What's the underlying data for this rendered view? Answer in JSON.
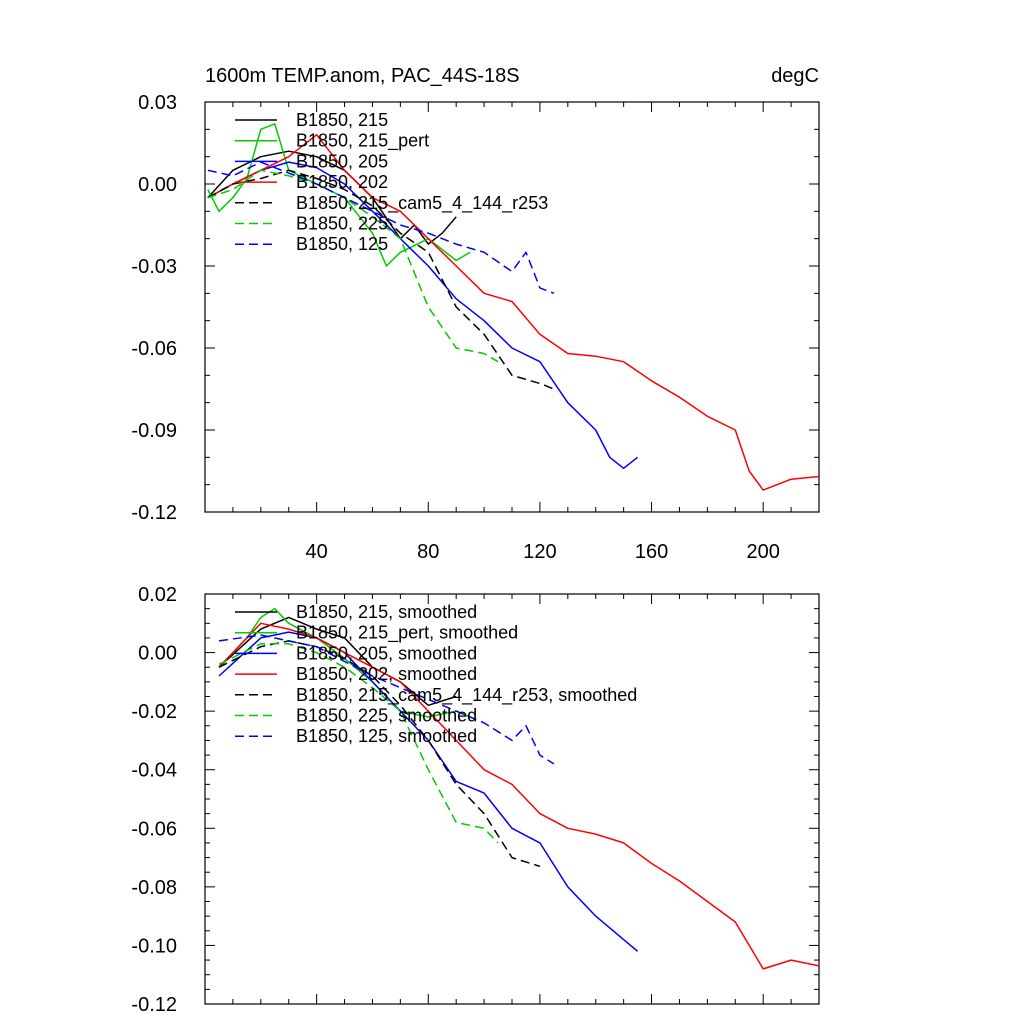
{
  "chart_data": [
    {
      "type": "line",
      "title_left": "1600m TEMP.anom, PAC_44S-18S",
      "title_right": "degC",
      "xlabel": "",
      "ylabel": "",
      "xlim": [
        0,
        220
      ],
      "ylim": [
        -0.12,
        0.03
      ],
      "xticks": [
        "40",
        "80",
        "120",
        "160",
        "200"
      ],
      "yticks": [
        "0.03",
        "0.00",
        "-0.03",
        "-0.06",
        "-0.09",
        "-0.12"
      ],
      "legend_position": "top-left",
      "series": [
        {
          "name": "B1850, 215",
          "color": "#000000",
          "dash": "solid",
          "x": [
            1,
            10,
            20,
            30,
            40,
            50,
            60,
            70,
            75,
            80,
            85,
            90
          ],
          "y": [
            -0.005,
            0.005,
            0.01,
            0.012,
            0.01,
            0.005,
            -0.005,
            -0.02,
            -0.015,
            -0.022,
            -0.018,
            -0.012
          ]
        },
        {
          "name": "B1850, 215_pert",
          "color": "#00cc00",
          "dash": "solid",
          "x": [
            1,
            5,
            10,
            15,
            20,
            25,
            30,
            40,
            50,
            60,
            65,
            70,
            80,
            90,
            95
          ],
          "y": [
            -0.002,
            -0.01,
            -0.005,
            0.002,
            0.02,
            0.022,
            0.005,
            0.0,
            -0.005,
            -0.018,
            -0.03,
            -0.025,
            -0.02,
            -0.028,
            -0.025
          ]
        },
        {
          "name": "B1850, 205",
          "color": "#0000ff",
          "dash": "solid",
          "x": [
            1,
            10,
            20,
            30,
            40,
            50,
            60,
            70,
            80,
            90,
            100,
            110,
            120,
            130,
            140,
            145,
            150,
            155
          ],
          "y": [
            -0.005,
            0.0,
            0.005,
            0.008,
            0.006,
            0.0,
            -0.01,
            -0.02,
            -0.03,
            -0.042,
            -0.05,
            -0.06,
            -0.065,
            -0.08,
            -0.09,
            -0.1,
            -0.104,
            -0.1
          ]
        },
        {
          "name": "B1850, 202",
          "color": "#ff0000",
          "dash": "solid",
          "x": [
            1,
            10,
            20,
            30,
            40,
            50,
            60,
            70,
            80,
            90,
            100,
            110,
            120,
            130,
            140,
            150,
            160,
            170,
            180,
            190,
            195,
            200,
            210,
            220
          ],
          "y": [
            -0.005,
            0.0,
            0.005,
            0.01,
            0.018,
            0.005,
            -0.005,
            -0.01,
            -0.02,
            -0.03,
            -0.04,
            -0.043,
            -0.055,
            -0.062,
            -0.063,
            -0.065,
            -0.072,
            -0.078,
            -0.085,
            -0.09,
            -0.105,
            -0.112,
            -0.108,
            -0.107
          ]
        },
        {
          "name": "B1850, 215_cam5_4_144_r253",
          "color": "#000000",
          "dash": "dashed",
          "x": [
            1,
            10,
            20,
            30,
            40,
            50,
            60,
            70,
            80,
            90,
            100,
            110,
            120,
            125
          ],
          "y": [
            -0.005,
            0.0,
            0.002,
            0.005,
            0.002,
            -0.002,
            -0.008,
            -0.018,
            -0.025,
            -0.045,
            -0.055,
            -0.07,
            -0.073,
            -0.075
          ]
        },
        {
          "name": "B1850, 225",
          "color": "#00cc00",
          "dash": "dashed",
          "x": [
            1,
            10,
            20,
            30,
            40,
            50,
            60,
            70,
            80,
            90,
            100,
            105
          ],
          "y": [
            -0.005,
            -0.002,
            0.005,
            0.003,
            0.0,
            -0.005,
            -0.012,
            -0.02,
            -0.045,
            -0.06,
            -0.062,
            -0.065
          ]
        },
        {
          "name": "B1850, 125",
          "color": "#0000ff",
          "dash": "dashed",
          "x": [
            1,
            10,
            20,
            30,
            40,
            50,
            60,
            70,
            80,
            90,
            100,
            110,
            115,
            120,
            125
          ],
          "y": [
            0.005,
            0.003,
            0.008,
            0.004,
            0.0,
            -0.005,
            -0.01,
            -0.015,
            -0.018,
            -0.022,
            -0.025,
            -0.032,
            -0.025,
            -0.038,
            -0.04
          ]
        }
      ]
    },
    {
      "type": "line",
      "title_left": "",
      "title_right": "",
      "xlabel": "",
      "ylabel": "",
      "xlim": [
        0,
        220
      ],
      "ylim": [
        -0.12,
        0.02
      ],
      "xticks": [],
      "yticks": [
        "0.02",
        "0.00",
        "-0.02",
        "-0.04",
        "-0.06",
        "-0.08",
        "-0.10",
        "-0.12"
      ],
      "legend_position": "top-left",
      "series": [
        {
          "name": "B1850, 215, smoothed",
          "color": "#000000",
          "dash": "solid",
          "x": [
            5,
            20,
            30,
            40,
            50,
            60,
            70,
            80,
            90
          ],
          "y": [
            -0.005,
            0.008,
            0.012,
            0.008,
            0.005,
            -0.005,
            -0.01,
            -0.018,
            -0.015
          ]
        },
        {
          "name": "B1850, 215_pert, smoothed",
          "color": "#00cc00",
          "dash": "solid",
          "x": [
            5,
            15,
            20,
            25,
            30,
            40,
            50,
            60,
            70,
            80,
            90,
            95
          ],
          "y": [
            -0.005,
            0.005,
            0.012,
            0.015,
            0.01,
            0.005,
            -0.002,
            -0.01,
            -0.02,
            -0.022,
            -0.02,
            -0.022
          ]
        },
        {
          "name": "B1850, 205, smoothed",
          "color": "#0000ff",
          "dash": "solid",
          "x": [
            5,
            20,
            30,
            40,
            50,
            60,
            70,
            80,
            90,
            100,
            110,
            120,
            130,
            140,
            150,
            155
          ],
          "y": [
            -0.008,
            0.005,
            0.007,
            0.005,
            0.0,
            -0.01,
            -0.02,
            -0.03,
            -0.044,
            -0.048,
            -0.06,
            -0.065,
            -0.08,
            -0.09,
            -0.098,
            -0.102
          ]
        },
        {
          "name": "B1850, 202, smoothed",
          "color": "#ff0000",
          "dash": "solid",
          "x": [
            5,
            20,
            30,
            40,
            50,
            60,
            70,
            80,
            90,
            100,
            110,
            120,
            130,
            140,
            150,
            160,
            170,
            180,
            190,
            195,
            200,
            210,
            220
          ],
          "y": [
            -0.005,
            0.01,
            0.008,
            0.005,
            0.0,
            -0.005,
            -0.01,
            -0.02,
            -0.03,
            -0.04,
            -0.045,
            -0.055,
            -0.06,
            -0.062,
            -0.065,
            -0.072,
            -0.078,
            -0.085,
            -0.092,
            -0.1,
            -0.108,
            -0.105,
            -0.107
          ]
        },
        {
          "name": "B1850, 215_cam5_4_144_r253, smoothed",
          "color": "#000000",
          "dash": "dashed",
          "x": [
            5,
            20,
            30,
            40,
            50,
            60,
            70,
            80,
            90,
            100,
            110,
            120
          ],
          "y": [
            -0.005,
            0.002,
            0.004,
            0.002,
            -0.002,
            -0.008,
            -0.018,
            -0.03,
            -0.045,
            -0.055,
            -0.07,
            -0.073
          ]
        },
        {
          "name": "B1850, 225, smoothed",
          "color": "#00cc00",
          "dash": "dashed",
          "x": [
            5,
            20,
            30,
            40,
            50,
            60,
            70,
            80,
            90,
            100,
            105
          ],
          "y": [
            -0.004,
            0.003,
            0.003,
            0.0,
            -0.005,
            -0.012,
            -0.02,
            -0.04,
            -0.058,
            -0.06,
            -0.065
          ]
        },
        {
          "name": "B1850, 125, smoothed",
          "color": "#0000ff",
          "dash": "dashed",
          "x": [
            5,
            20,
            30,
            40,
            50,
            60,
            70,
            80,
            90,
            100,
            110,
            115,
            120,
            125
          ],
          "y": [
            0.004,
            0.006,
            0.004,
            0.002,
            -0.003,
            -0.008,
            -0.012,
            -0.016,
            -0.02,
            -0.024,
            -0.03,
            -0.025,
            -0.035,
            -0.038
          ]
        }
      ]
    }
  ]
}
